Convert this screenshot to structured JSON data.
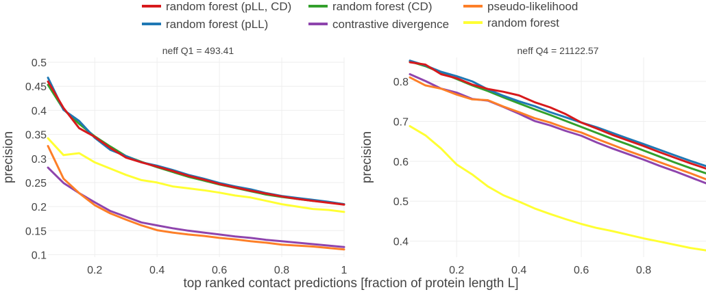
{
  "chart_data": {
    "type": "line",
    "legend": {
      "placement": "top-center",
      "entries": [
        {
          "label": "random forest (pLL, CD)",
          "color": "#d7191c"
        },
        {
          "label": "random forest (pLL)",
          "color": "#1f78b4"
        },
        {
          "label": "random forest (CD)",
          "color": "#33a02c"
        },
        {
          "label": "contrastive divergence",
          "color": "#8e44ad"
        },
        {
          "label": "pseudo-likelihood",
          "color": "#fd7f28"
        },
        {
          "label": "random forest",
          "color": "#ffff33"
        }
      ]
    },
    "xlabel": "top ranked contact predictions [fraction of protein length L]",
    "grid": true,
    "panels": [
      {
        "title": "neff  Q1 = 493.41",
        "ylabel": "precision",
        "xlim": [
          0.05,
          1.0
        ],
        "ylim": [
          0.095,
          0.51
        ],
        "xticks": [
          "0.2",
          "0.4",
          "0.6",
          "0.8",
          "1"
        ],
        "yticks": [
          "0.1",
          "0.15",
          "0.2",
          "0.25",
          "0.3",
          "0.35",
          "0.4",
          "0.45",
          "0.5"
        ],
        "x": [
          0.05,
          0.1,
          0.15,
          0.2,
          0.25,
          0.3,
          0.35,
          0.4,
          0.45,
          0.5,
          0.55,
          0.6,
          0.65,
          0.7,
          0.75,
          0.8,
          0.85,
          0.9,
          0.95,
          1.0
        ],
        "series": [
          {
            "name": "random forest",
            "values": [
              0.342,
              0.307,
              0.311,
              0.292,
              0.279,
              0.266,
              0.255,
              0.25,
              0.242,
              0.238,
              0.234,
              0.229,
              0.223,
              0.219,
              0.212,
              0.205,
              0.2,
              0.195,
              0.193,
              0.189
            ]
          },
          {
            "name": "contrastive divergence",
            "values": [
              0.281,
              0.249,
              0.228,
              0.209,
              0.191,
              0.179,
              0.167,
              0.161,
              0.155,
              0.15,
              0.146,
              0.142,
              0.138,
              0.135,
              0.131,
              0.128,
              0.125,
              0.122,
              0.119,
              0.116
            ]
          },
          {
            "name": "pseudo-likelihood",
            "values": [
              0.326,
              0.258,
              0.228,
              0.203,
              0.186,
              0.173,
              0.161,
              0.151,
              0.146,
              0.142,
              0.139,
              0.135,
              0.132,
              0.128,
              0.125,
              0.121,
              0.119,
              0.117,
              0.114,
              0.111
            ]
          },
          {
            "name": "random forest (CD)",
            "values": [
              0.453,
              0.402,
              0.372,
              0.346,
              0.325,
              0.305,
              0.293,
              0.282,
              0.272,
              0.262,
              0.254,
              0.246,
              0.239,
              0.232,
              0.225,
              0.22,
              0.216,
              0.212,
              0.209,
              0.205
            ]
          },
          {
            "name": "random forest (pLL)",
            "values": [
              0.468,
              0.401,
              0.378,
              0.343,
              0.318,
              0.305,
              0.292,
              0.285,
              0.276,
              0.266,
              0.258,
              0.249,
              0.242,
              0.236,
              0.228,
              0.222,
              0.218,
              0.214,
              0.21,
              0.205
            ]
          },
          {
            "name": "random forest (pLL, CD)",
            "values": [
              0.46,
              0.405,
              0.363,
              0.345,
              0.322,
              0.302,
              0.292,
              0.283,
              0.274,
              0.264,
              0.256,
              0.247,
              0.24,
              0.233,
              0.227,
              0.221,
              0.216,
              0.212,
              0.208,
              0.204
            ]
          }
        ]
      },
      {
        "title": "neff  Q4 = 21122.57",
        "ylabel": "precision",
        "xlim": [
          0.05,
          1.0
        ],
        "ylim": [
          0.36,
          0.86
        ],
        "xticks": [
          "0.2",
          "0.4",
          "0.6",
          "0.8"
        ],
        "yticks": [
          "0.4",
          "0.5",
          "0.6",
          "0.7",
          "0.8"
        ],
        "x": [
          0.05,
          0.1,
          0.15,
          0.2,
          0.25,
          0.3,
          0.35,
          0.4,
          0.45,
          0.5,
          0.55,
          0.6,
          0.65,
          0.7,
          0.75,
          0.8,
          0.85,
          0.9,
          0.95,
          1.0
        ],
        "series": [
          {
            "name": "random forest",
            "values": [
              0.688,
              0.665,
              0.632,
              0.592,
              0.567,
              0.537,
              0.515,
              0.499,
              0.482,
              0.468,
              0.455,
              0.443,
              0.433,
              0.425,
              0.416,
              0.407,
              0.399,
              0.391,
              0.383,
              0.377
            ]
          },
          {
            "name": "contrastive divergence",
            "values": [
              0.818,
              0.801,
              0.782,
              0.772,
              0.756,
              0.752,
              0.736,
              0.719,
              0.701,
              0.69,
              0.676,
              0.664,
              0.647,
              0.632,
              0.618,
              0.604,
              0.589,
              0.575,
              0.56,
              0.545
            ]
          },
          {
            "name": "pseudo-likelihood",
            "values": [
              0.81,
              0.79,
              0.782,
              0.767,
              0.755,
              0.753,
              0.737,
              0.723,
              0.708,
              0.697,
              0.683,
              0.672,
              0.656,
              0.641,
              0.626,
              0.612,
              0.598,
              0.584,
              0.57,
              0.555
            ]
          },
          {
            "name": "random forest (CD)",
            "values": [
              0.85,
              0.838,
              0.822,
              0.806,
              0.79,
              0.776,
              0.76,
              0.745,
              0.73,
              0.716,
              0.701,
              0.686,
              0.671,
              0.656,
              0.642,
              0.627,
              0.612,
              0.597,
              0.583,
              0.57
            ]
          },
          {
            "name": "random forest (pLL)",
            "values": [
              0.852,
              0.84,
              0.824,
              0.813,
              0.8,
              0.78,
              0.764,
              0.75,
              0.738,
              0.723,
              0.71,
              0.697,
              0.685,
              0.671,
              0.657,
              0.643,
              0.629,
              0.615,
              0.601,
              0.588
            ]
          },
          {
            "name": "random forest (pLL, CD)",
            "values": [
              0.848,
              0.842,
              0.818,
              0.808,
              0.792,
              0.781,
              0.774,
              0.765,
              0.748,
              0.735,
              0.718,
              0.697,
              0.682,
              0.666,
              0.652,
              0.638,
              0.623,
              0.609,
              0.595,
              0.582
            ]
          }
        ]
      }
    ]
  }
}
